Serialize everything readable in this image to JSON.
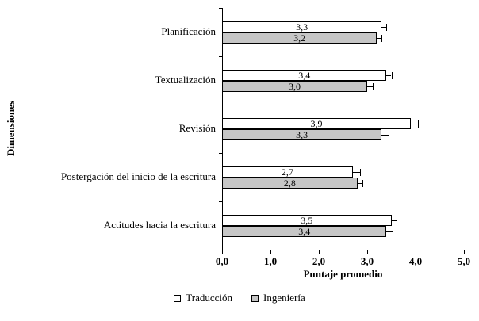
{
  "chart_data": {
    "type": "bar",
    "orientation": "horizontal",
    "title": "",
    "xlabel": "Puntaje promedio",
    "ylabel": "Dimensiones",
    "xlim": [
      0,
      5
    ],
    "xtick_step": 1,
    "xticks": [
      "0,0",
      "1,0",
      "2,0",
      "3,0",
      "4,0",
      "5,0"
    ],
    "grid": false,
    "legend_position": "bottom",
    "error_bars": true,
    "categories": [
      "Planificación",
      "Textualización",
      "Revisión",
      "Postergación del inicio de la escritura",
      "Actitudes hacia la escritura"
    ],
    "series": [
      {
        "name": "Traducción",
        "color": "#ffffff",
        "values": [
          3.3,
          3.4,
          3.9,
          2.7,
          3.5
        ],
        "labels": [
          "3,3",
          "3,4",
          "3,9",
          "2,7",
          "3,5"
        ],
        "errors": [
          0.1,
          0.1,
          0.15,
          0.15,
          0.1
        ]
      },
      {
        "name": "Ingeniería",
        "color": "#c6c6c6",
        "values": [
          3.2,
          3.0,
          3.3,
          2.8,
          3.4
        ],
        "labels": [
          "3,2",
          "3,0",
          "3,3",
          "2,8",
          "3,4"
        ],
        "errors": [
          0.1,
          0.12,
          0.15,
          0.1,
          0.12
        ]
      }
    ]
  }
}
